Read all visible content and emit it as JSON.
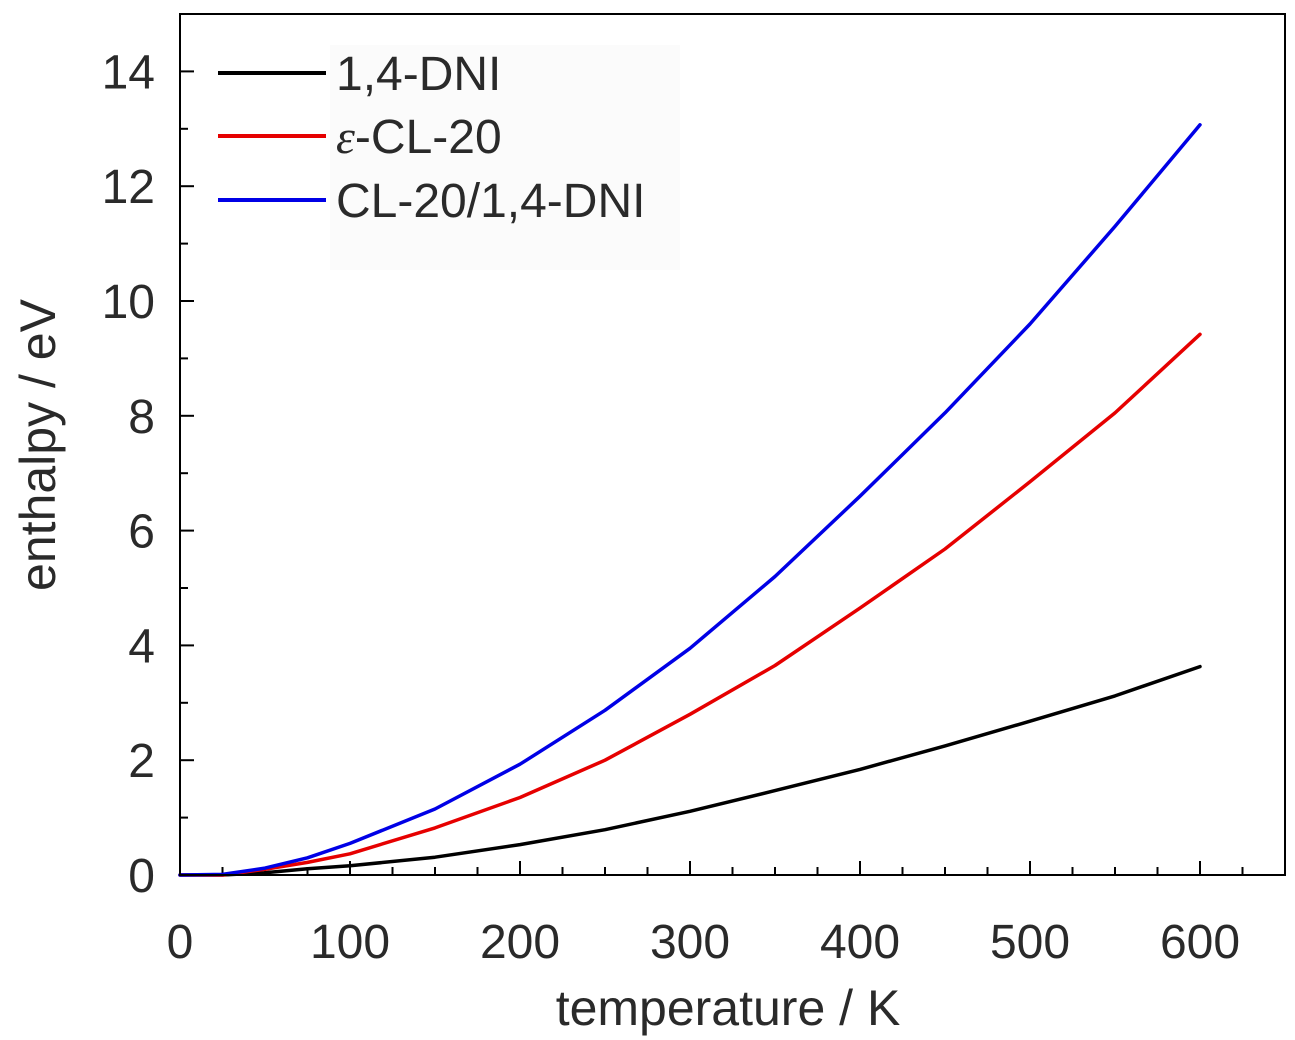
{
  "chart_data": {
    "type": "line",
    "xlabel": "temperature / K",
    "ylabel": "enthalpy / eV",
    "xlim": [
      0,
      650
    ],
    "ylim": [
      0,
      15
    ],
    "xticks": [
      0,
      100,
      200,
      300,
      400,
      500,
      600
    ],
    "yticks": [
      0,
      2,
      4,
      6,
      8,
      10,
      12,
      14
    ],
    "x_minor_step": 25,
    "y_minor_step": 1,
    "grid": false,
    "legend_position": "top-left",
    "series": [
      {
        "name": "1,4-DNI",
        "color": "#000000",
        "x": [
          0,
          25,
          50,
          75,
          100,
          150,
          200,
          250,
          300,
          350,
          400,
          450,
          500,
          550,
          600
        ],
        "y": [
          0,
          0.0,
          0.04,
          0.11,
          0.16,
          0.31,
          0.53,
          0.79,
          1.11,
          1.47,
          1.84,
          2.25,
          2.68,
          3.12,
          3.63
        ]
      },
      {
        "name_prefix": "ε",
        "name": "-CL-20",
        "color": "#e60000",
        "x": [
          0,
          25,
          50,
          75,
          100,
          150,
          200,
          250,
          300,
          350,
          400,
          450,
          500,
          550,
          600
        ],
        "y": [
          0,
          0.0,
          0.1,
          0.22,
          0.37,
          0.82,
          1.35,
          2.0,
          2.8,
          3.65,
          4.65,
          5.68,
          6.85,
          8.05,
          9.42
        ]
      },
      {
        "name": "CL-20/1,4-DNI",
        "color": "#0000e6",
        "x": [
          0,
          25,
          50,
          75,
          100,
          150,
          200,
          250,
          300,
          350,
          400,
          450,
          500,
          550,
          600
        ],
        "y": [
          0,
          0.01,
          0.12,
          0.3,
          0.55,
          1.15,
          1.93,
          2.87,
          3.95,
          5.2,
          6.6,
          8.05,
          9.6,
          11.3,
          13.07
        ]
      }
    ]
  }
}
